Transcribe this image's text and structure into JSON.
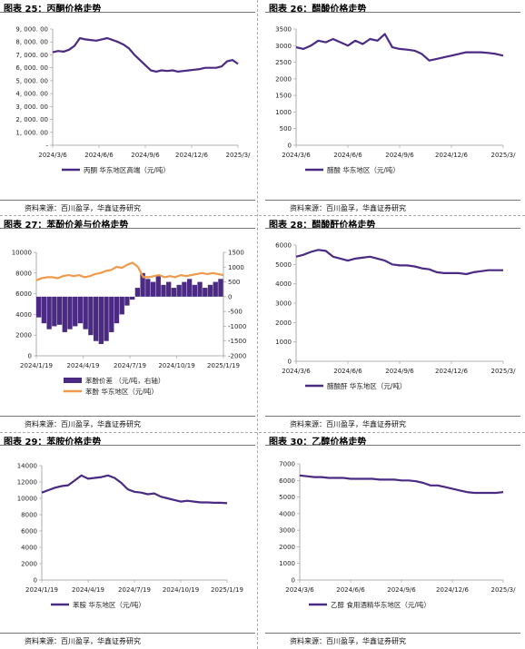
{
  "source_label": "资料来源：百川盈孚，华鑫证券研究",
  "charts": [
    {
      "title": "图表 25：丙酮价格走势",
      "chart_data": {
        "type": "line",
        "color": "#4b2a83",
        "x_ticks": [
          "2024/3/6",
          "2024/6/6",
          "2024/9/6",
          "2024/12/6",
          "2025/3/"
        ],
        "ylim": [
          0,
          9000
        ],
        "y_ticks": [
          "-",
          "1, 000. 00",
          "2, 000. 00",
          "3, 000. 00",
          "4, 000. 00",
          "5, 000. 00",
          "6, 000. 00",
          "7, 000. 00",
          "8, 000. 00",
          "9, 000. 00"
        ],
        "series": [
          {
            "name": "丙酮 华东地区高端（元/吨）",
            "values": [
              7200,
              7300,
              7250,
              7400,
              7700,
              8300,
              8200,
              8150,
              8100,
              8200,
              8300,
              8150,
              8000,
              7800,
              7500,
              7000,
              6600,
              6200,
              5800,
              5700,
              5800,
              5750,
              5800,
              5700,
              5750,
              5800,
              5850,
              5900,
              6000,
              6000,
              6000,
              6100,
              6500,
              6600,
              6300
            ]
          }
        ]
      }
    },
    {
      "title": "图表 26：醋酸价格走势",
      "chart_data": {
        "type": "line",
        "color": "#4b2a83",
        "x_ticks": [
          "2024/3/6",
          "2024/6/6",
          "2024/9/6",
          "2024/12/6",
          "2025/3/"
        ],
        "ylim": [
          0,
          3500
        ],
        "y_ticks": [
          "0",
          "500",
          "1000",
          "1500",
          "2000",
          "2500",
          "3000",
          "3500"
        ],
        "series": [
          {
            "name": "醋酸 华东地区（元/吨）",
            "values": [
              2950,
              2900,
              3000,
              3150,
              3100,
              3200,
              3100,
              3000,
              3150,
              3050,
              3200,
              3150,
              3350,
              2950,
              2900,
              2880,
              2850,
              2750,
              2550,
              2600,
              2650,
              2700,
              2750,
              2800,
              2800,
              2800,
              2780,
              2750,
              2700
            ]
          }
        ]
      }
    },
    {
      "title": "图表 27：苯酚价差与价格走势",
      "chart_data": {
        "type": "bar+line",
        "bar_color": "#4b2a83",
        "line_color": "#ef9a4a",
        "x_ticks": [
          "2024/1/19",
          "2024/4/19",
          "2024/7/19",
          "2024/10/19",
          "2025/1/19"
        ],
        "ylim": [
          0,
          10000
        ],
        "y_ticks": [
          "0",
          "2000",
          "4000",
          "6000",
          "8000",
          "10000"
        ],
        "y2lim": [
          -2000,
          1500
        ],
        "y2_ticks": [
          "-2000",
          "-1500",
          "-1000",
          "-500",
          "0",
          "500",
          "1000",
          "1500"
        ],
        "series": [
          {
            "name": "苯酚价差 （元/吨，右轴）",
            "kind": "bar",
            "values": [
              -700,
              -900,
              -1100,
              -1000,
              -950,
              -1200,
              -1100,
              -1000,
              -900,
              -1100,
              -1300,
              -1500,
              -1600,
              -1500,
              -1200,
              -900,
              -600,
              -300,
              -100,
              300,
              800,
              600,
              500,
              700,
              400,
              500,
              300,
              400,
              500,
              600,
              400,
              500,
              300,
              400,
              500,
              600
            ]
          },
          {
            "name": "苯酚 华东地区（元/吨）",
            "kind": "line",
            "values": [
              7300,
              7500,
              7600,
              7600,
              7500,
              7700,
              7800,
              7700,
              7800,
              7600,
              7700,
              7900,
              8000,
              8200,
              8300,
              8600,
              8500,
              8800,
              9000,
              8600,
              7600,
              7600,
              7700,
              7800,
              7600,
              7700,
              7600,
              7800,
              7700,
              7800,
              7900,
              8000,
              7900,
              8000,
              7900,
              7800
            ]
          }
        ]
      }
    },
    {
      "title": "图表 28：醋酸酐价格走势",
      "chart_data": {
        "type": "line",
        "color": "#4b2a83",
        "x_ticks": [
          "2024/3/6",
          "2024/6/6",
          "2024/9/6",
          "2024/12/6",
          "2025/3/"
        ],
        "ylim": [
          0,
          6000
        ],
        "y_ticks": [
          "0",
          "1000",
          "2000",
          "3000",
          "4000",
          "5000",
          "6000"
        ],
        "series": [
          {
            "name": "醋酸酐 华东地区（元/吨）",
            "values": [
              5400,
              5500,
              5650,
              5750,
              5700,
              5400,
              5300,
              5200,
              5300,
              5350,
              5400,
              5300,
              5200,
              5000,
              4950,
              4950,
              4900,
              4800,
              4750,
              4600,
              4550,
              4550,
              4550,
              4500,
              4600,
              4650,
              4700,
              4700,
              4700
            ]
          }
        ]
      }
    },
    {
      "title": "图表 29：苯胺价格走势",
      "chart_data": {
        "type": "line",
        "color": "#4b2a83",
        "x_ticks": [
          "2024/1/19",
          "2024/4/19",
          "2024/7/19",
          "2024/10/19",
          "2025/1/19"
        ],
        "ylim": [
          0,
          14000
        ],
        "y_ticks": [
          "0",
          "2000",
          "4000",
          "6000",
          "8000",
          "10000",
          "12000",
          "14000"
        ],
        "series": [
          {
            "name": "苯胺 华东地区（元/吨）",
            "values": [
              10700,
              11000,
              11300,
              11500,
              11600,
              12200,
              12800,
              12400,
              12500,
              12600,
              12800,
              12500,
              11900,
              11100,
              10800,
              10700,
              10500,
              10600,
              10200,
              10000,
              9800,
              9600,
              9700,
              9600,
              9500,
              9500,
              9450,
              9450,
              9400
            ]
          }
        ]
      }
    },
    {
      "title": "图表 30：乙醇价格走势",
      "chart_data": {
        "type": "line",
        "color": "#4b2a83",
        "x_ticks": [
          "2024/3/6",
          "2024/6/6",
          "2024/9/6",
          "2024/12/6",
          "2025/3/"
        ],
        "ylim": [
          0,
          7000
        ],
        "y_ticks": [
          "0",
          "1000",
          "2000",
          "3000",
          "4000",
          "5000",
          "6000",
          "7000"
        ],
        "series": [
          {
            "name": "乙醇 食用酒精华东地区（元/吨）",
            "values": [
              6300,
              6250,
              6200,
              6200,
              6150,
              6150,
              6150,
              6100,
              6100,
              6100,
              6100,
              6050,
              6050,
              6050,
              6000,
              6000,
              5950,
              5850,
              5700,
              5700,
              5600,
              5500,
              5400,
              5300,
              5250,
              5250,
              5250,
              5250,
              5300
            ]
          }
        ]
      }
    }
  ]
}
